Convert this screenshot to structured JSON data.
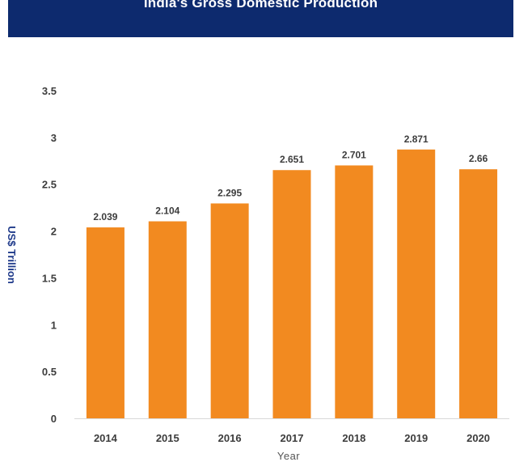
{
  "chart_data": {
    "type": "bar",
    "title": "India's Gross Domestic Production",
    "categories": [
      "2014",
      "2015",
      "2016",
      "2017",
      "2018",
      "2019",
      "2020"
    ],
    "values": [
      2.039,
      2.104,
      2.295,
      2.651,
      2.701,
      2.871,
      2.66
    ],
    "data_labels": [
      "2.039",
      "2.104",
      "2.295",
      "2.651",
      "2.701",
      "2.871",
      "2.66"
    ],
    "xlabel": "Year",
    "ylabel": "US$ Trillion",
    "ylim": [
      0,
      3.5
    ],
    "yticks": [
      0,
      0.5,
      1,
      1.5,
      2,
      2.5,
      3,
      3.5
    ],
    "ytick_labels": [
      "0",
      "0.5",
      "1",
      "1.5",
      "2",
      "2.5",
      "3",
      "3.5"
    ],
    "grid": false,
    "legend": "none",
    "colors": {
      "bar": "#f28a20",
      "title_background": "#0d2a6e",
      "title_text": "#ffffff",
      "axis_title_y": "#1f3a8a"
    }
  }
}
